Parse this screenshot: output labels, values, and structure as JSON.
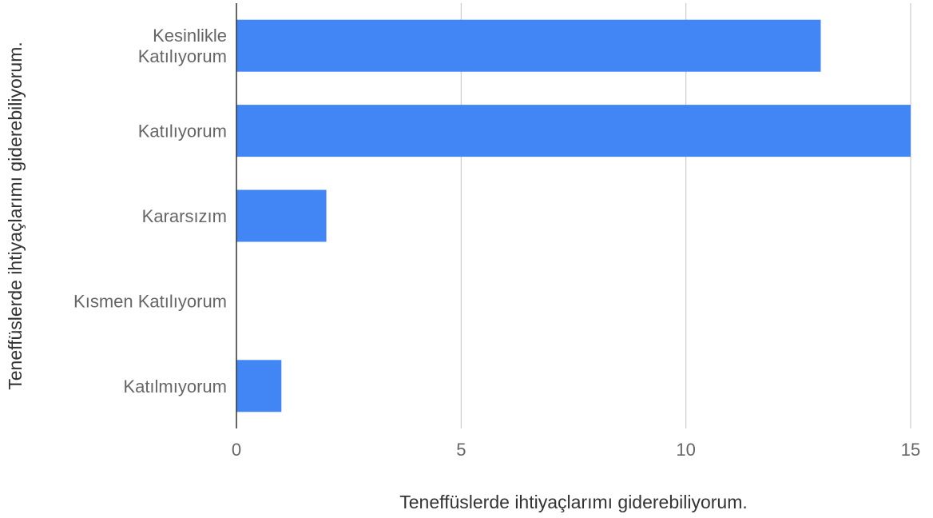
{
  "chart_data": {
    "type": "bar",
    "orientation": "horizontal",
    "categories": [
      [
        "Kesinlikle",
        "Katılıyorum"
      ],
      [
        "Katılıyorum"
      ],
      [
        "Kararsızım"
      ],
      [
        "Kısmen Katılıyorum"
      ],
      [
        "Katılmıyorum"
      ]
    ],
    "values": [
      13,
      15,
      2,
      0,
      1
    ],
    "xlabel": "Teneffüslerde ihtiyaçlarımı giderebiliyorum.",
    "ylabel": "Teneffüslerde ihtiyaçlarımı giderebiliyorum.",
    "xlim": [
      0,
      15
    ],
    "xticks": [
      "0",
      "5",
      "10",
      "15"
    ],
    "grid": true,
    "legend": "none",
    "colors": {
      "bar": "#4285f4",
      "grid": "#cccccc",
      "axis": "#333333"
    }
  }
}
